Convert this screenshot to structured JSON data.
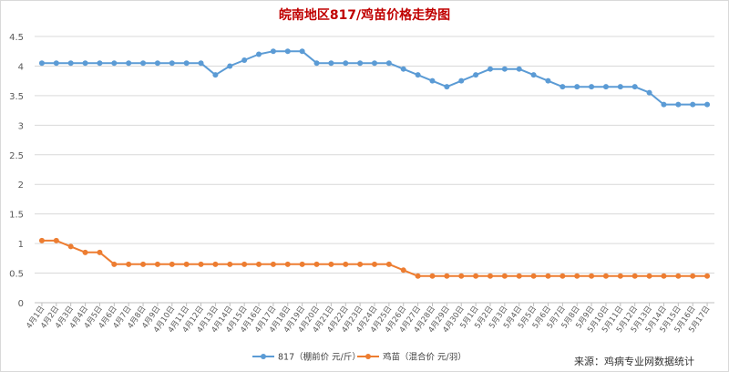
{
  "chart_data": {
    "type": "line",
    "title": "皖南地区817/鸡苗价格走势图",
    "source_note": "来源：鸡病专业网数据统计",
    "ylim": [
      0,
      4.5
    ],
    "yticks": [
      "0",
      "0.5",
      "1",
      "1.5",
      "2",
      "2.5",
      "3",
      "3.5",
      "4",
      "4.5"
    ],
    "grid": true,
    "legend_position": "bottom",
    "categories": [
      "4月1日",
      "4月2日",
      "4月3日",
      "4月4日",
      "4月5日",
      "4月6日",
      "4月7日",
      "4月8日",
      "4月9日",
      "4月10日",
      "4月11日",
      "4月12日",
      "4月13日",
      "4月14日",
      "4月15日",
      "4月16日",
      "4月17日",
      "4月18日",
      "4月19日",
      "4月20日",
      "4月21日",
      "4月22日",
      "4月23日",
      "4月24日",
      "4月25日",
      "4月26日",
      "4月27日",
      "4月28日",
      "4月29日",
      "4月30日",
      "5月1日",
      "5月2日",
      "5月3日",
      "5月4日",
      "5月5日",
      "5月6日",
      "5月7日",
      "5月8日",
      "5月9日",
      "5月10日",
      "5月11日",
      "5月12日",
      "5月13日",
      "5月14日",
      "5月15日",
      "5月16日",
      "5月17日"
    ],
    "series": [
      {
        "name": "817（棚前价 元/斤）",
        "color": "#5b9bd5",
        "values": [
          4.05,
          4.05,
          4.05,
          4.05,
          4.05,
          4.05,
          4.05,
          4.05,
          4.05,
          4.05,
          4.05,
          4.05,
          3.85,
          4.0,
          4.1,
          4.2,
          4.25,
          4.25,
          4.25,
          4.05,
          4.05,
          4.05,
          4.05,
          4.05,
          4.05,
          3.95,
          3.85,
          3.75,
          3.65,
          3.75,
          3.85,
          3.95,
          3.95,
          3.95,
          3.85,
          3.75,
          3.65,
          3.65,
          3.65,
          3.65,
          3.65,
          3.65,
          3.55,
          3.35,
          3.35,
          3.35,
          3.35
        ]
      },
      {
        "name": "鸡苗（混合价 元/羽）",
        "color": "#ed7d31",
        "values": [
          1.05,
          1.05,
          0.95,
          0.85,
          0.85,
          0.65,
          0.65,
          0.65,
          0.65,
          0.65,
          0.65,
          0.65,
          0.65,
          0.65,
          0.65,
          0.65,
          0.65,
          0.65,
          0.65,
          0.65,
          0.65,
          0.65,
          0.65,
          0.65,
          0.65,
          0.55,
          0.45,
          0.45,
          0.45,
          0.45,
          0.45,
          0.45,
          0.45,
          0.45,
          0.45,
          0.45,
          0.45,
          0.45,
          0.45,
          0.45,
          0.45,
          0.45,
          0.45,
          0.45,
          0.45,
          0.45,
          0.45
        ]
      }
    ]
  }
}
